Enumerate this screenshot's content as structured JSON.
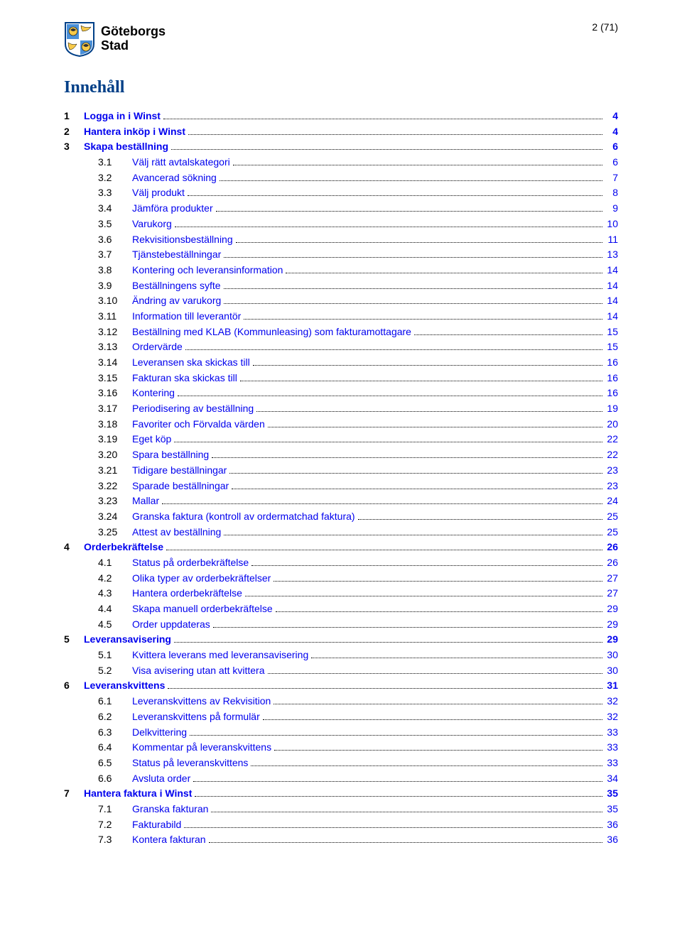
{
  "header": {
    "logo_line1": "Göteborgs",
    "logo_line2": "Stad",
    "page_label": "2 (71)"
  },
  "toc_title": "Innehåll",
  "link_color": "#0000ee",
  "heading_color": "#003f87",
  "dot_color": "#000000",
  "entries": [
    {
      "level": 1,
      "num": "1",
      "title": "Logga in i Winst",
      "page": "4"
    },
    {
      "level": 1,
      "num": "2",
      "title": "Hantera inköp i Winst",
      "page": "4"
    },
    {
      "level": 1,
      "num": "3",
      "title": "Skapa beställning",
      "page": "6"
    },
    {
      "level": 2,
      "num": "3.1",
      "title": "Välj rätt avtalskategori",
      "page": "6"
    },
    {
      "level": 2,
      "num": "3.2",
      "title": "Avancerad sökning",
      "page": "7"
    },
    {
      "level": 2,
      "num": "3.3",
      "title": "Välj produkt",
      "page": "8"
    },
    {
      "level": 2,
      "num": "3.4",
      "title": "Jämföra produkter",
      "page": "9"
    },
    {
      "level": 2,
      "num": "3.5",
      "title": "Varukorg",
      "page": "10"
    },
    {
      "level": 2,
      "num": "3.6",
      "title": "Rekvisitionsbeställning",
      "page": "11"
    },
    {
      "level": 2,
      "num": "3.7",
      "title": "Tjänstebeställningar",
      "page": "13"
    },
    {
      "level": 2,
      "num": "3.8",
      "title": "Kontering och leveransinformation",
      "page": "14"
    },
    {
      "level": 2,
      "num": "3.9",
      "title": "Beställningens syfte",
      "page": "14"
    },
    {
      "level": 2,
      "num": "3.10",
      "title": "Ändring av varukorg",
      "page": "14"
    },
    {
      "level": 2,
      "num": "3.11",
      "title": "Information till leverantör",
      "page": "14"
    },
    {
      "level": 2,
      "num": "3.12",
      "title": "Beställning med KLAB (Kommunleasing) som fakturamottagare",
      "page": "15"
    },
    {
      "level": 2,
      "num": "3.13",
      "title": "Ordervärde",
      "page": "15"
    },
    {
      "level": 2,
      "num": "3.14",
      "title": "Leveransen ska skickas till",
      "page": "16"
    },
    {
      "level": 2,
      "num": "3.15",
      "title": "Fakturan ska skickas till",
      "page": "16"
    },
    {
      "level": 2,
      "num": "3.16",
      "title": "Kontering",
      "page": "16"
    },
    {
      "level": 2,
      "num": "3.17",
      "title": "Periodisering av beställning",
      "page": "19"
    },
    {
      "level": 2,
      "num": "3.18",
      "title": "Favoriter och Förvalda värden",
      "page": "20"
    },
    {
      "level": 2,
      "num": "3.19",
      "title": "Eget köp",
      "page": "22"
    },
    {
      "level": 2,
      "num": "3.20",
      "title": "Spara beställning",
      "page": "22"
    },
    {
      "level": 2,
      "num": "3.21",
      "title": "Tidigare beställningar",
      "page": "23"
    },
    {
      "level": 2,
      "num": "3.22",
      "title": "Sparade beställningar",
      "page": "23"
    },
    {
      "level": 2,
      "num": "3.23",
      "title": "Mallar",
      "page": "24"
    },
    {
      "level": 2,
      "num": "3.24",
      "title": "Granska faktura (kontroll av ordermatchad faktura)",
      "page": "25"
    },
    {
      "level": 2,
      "num": "3.25",
      "title": "Attest av beställning",
      "page": "25"
    },
    {
      "level": 1,
      "num": "4",
      "title": "Orderbekräftelse",
      "page": "26"
    },
    {
      "level": 2,
      "num": "4.1",
      "title": "Status på orderbekräftelse",
      "page": "26"
    },
    {
      "level": 2,
      "num": "4.2",
      "title": "Olika typer av orderbekräftelser",
      "page": "27"
    },
    {
      "level": 2,
      "num": "4.3",
      "title": "Hantera orderbekräftelse",
      "page": "27"
    },
    {
      "level": 2,
      "num": "4.4",
      "title": "Skapa manuell orderbekräftelse",
      "page": "29"
    },
    {
      "level": 2,
      "num": "4.5",
      "title": "Order uppdateras",
      "page": "29"
    },
    {
      "level": 1,
      "num": "5",
      "title": "Leveransavisering",
      "page": "29"
    },
    {
      "level": 2,
      "num": "5.1",
      "title": "Kvittera leverans med leveransavisering",
      "page": "30"
    },
    {
      "level": 2,
      "num": "5.2",
      "title": "Visa avisering utan att kvittera",
      "page": "30"
    },
    {
      "level": 1,
      "num": "6",
      "title": "Leveranskvittens",
      "page": "31"
    },
    {
      "level": 2,
      "num": "6.1",
      "title": "Leveranskvittens av Rekvisition",
      "page": "32"
    },
    {
      "level": 2,
      "num": "6.2",
      "title": "Leveranskvittens på formulär",
      "page": "32"
    },
    {
      "level": 2,
      "num": "6.3",
      "title": "Delkvittering",
      "page": "33"
    },
    {
      "level": 2,
      "num": "6.4",
      "title": "Kommentar på leveranskvittens",
      "page": "33"
    },
    {
      "level": 2,
      "num": "6.5",
      "title": "Status på leveranskvittens",
      "page": "33"
    },
    {
      "level": 2,
      "num": "6.6",
      "title": "Avsluta order",
      "page": "34"
    },
    {
      "level": 1,
      "num": "7",
      "title": "Hantera faktura i Winst",
      "page": "35"
    },
    {
      "level": 2,
      "num": "7.1",
      "title": "Granska fakturan",
      "page": "35"
    },
    {
      "level": 2,
      "num": "7.2",
      "title": "Fakturabild",
      "page": "36"
    },
    {
      "level": 2,
      "num": "7.3",
      "title": "Kontera fakturan",
      "page": "36"
    }
  ]
}
